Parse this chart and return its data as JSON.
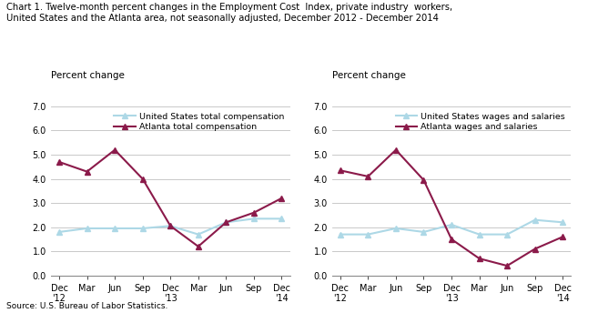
{
  "title_line1": "Chart 1. Twelve-month percent changes in the Employment Cost  Index, private industry  workers,",
  "title_line2": "United States and the Atlanta area, not seasonally adjusted, December 2012 - December 2014",
  "source": "Source: U.S. Bureau of Labor Statistics.",
  "left": {
    "ylabel": "Percent change",
    "us_label": "United States total compensation",
    "atl_label": "Atlanta total compensation",
    "us_values": [
      1.8,
      1.95,
      1.95,
      1.95,
      2.05,
      1.7,
      2.2,
      2.35,
      2.35
    ],
    "atl_values": [
      4.7,
      4.3,
      5.2,
      4.0,
      2.05,
      1.2,
      2.2,
      2.6,
      3.2
    ],
    "ylim": [
      0.0,
      7.0
    ],
    "yticks": [
      0.0,
      1.0,
      2.0,
      3.0,
      4.0,
      5.0,
      6.0,
      7.0
    ]
  },
  "right": {
    "ylabel": "Percent change",
    "us_label": "United States wages and salaries",
    "atl_label": "Atlanta wages and salaries",
    "us_values": [
      1.7,
      1.7,
      1.95,
      1.8,
      2.1,
      1.7,
      1.7,
      2.3,
      2.2
    ],
    "atl_values": [
      4.35,
      4.1,
      5.2,
      3.95,
      1.5,
      0.7,
      0.4,
      1.1,
      1.6
    ],
    "ylim": [
      0.0,
      7.0
    ],
    "yticks": [
      0.0,
      1.0,
      2.0,
      3.0,
      4.0,
      5.0,
      6.0,
      7.0
    ]
  },
  "us_color": "#add8e6",
  "atl_color": "#8b1a4a",
  "marker": "^",
  "linewidth": 1.5,
  "markersize": 4,
  "tick_labels": [
    "Dec\n'12",
    "Mar",
    "Jun",
    "Sep",
    "Dec\n'13",
    "Mar",
    "Jun",
    "Sep",
    "Dec\n'14"
  ]
}
